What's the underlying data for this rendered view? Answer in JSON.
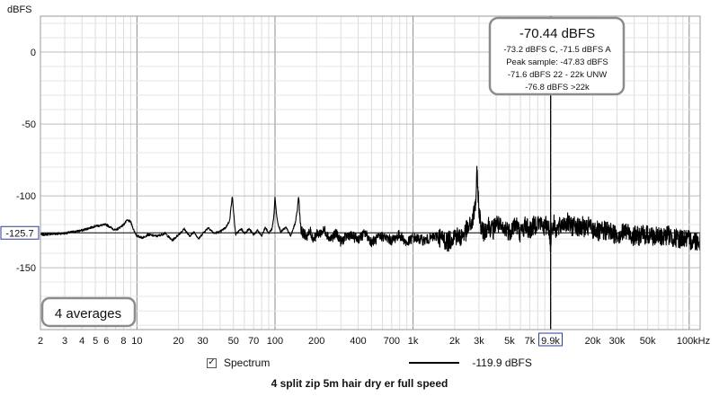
{
  "chart_data": {
    "type": "line",
    "title": "4 split zip 5m hair dry er full speed",
    "ylabel": "dBFS",
    "xlabel": "",
    "x_scale": "log",
    "xlim": [
      2,
      120000
    ],
    "ylim": [
      -193,
      25
    ],
    "x_ticks": [
      {
        "v": 2,
        "l": "2"
      },
      {
        "v": 3,
        "l": "3"
      },
      {
        "v": 4,
        "l": "4"
      },
      {
        "v": 5,
        "l": "5"
      },
      {
        "v": 6,
        "l": "6"
      },
      {
        "v": 8,
        "l": "8"
      },
      {
        "v": 10,
        "l": "10"
      },
      {
        "v": 20,
        "l": "20"
      },
      {
        "v": 30,
        "l": "30"
      },
      {
        "v": 50,
        "l": "50"
      },
      {
        "v": 70,
        "l": "70"
      },
      {
        "v": 100,
        "l": "100"
      },
      {
        "v": 200,
        "l": "200"
      },
      {
        "v": 400,
        "l": "400"
      },
      {
        "v": 700,
        "l": "700"
      },
      {
        "v": 1000,
        "l": "1k"
      },
      {
        "v": 2000,
        "l": "2k"
      },
      {
        "v": 3000,
        "l": "3k"
      },
      {
        "v": 5000,
        "l": "5k"
      },
      {
        "v": 7000,
        "l": "7k"
      },
      {
        "v": 20000,
        "l": "20k"
      },
      {
        "v": 30000,
        "l": "30k"
      },
      {
        "v": 50000,
        "l": "50k"
      },
      {
        "v": 100000,
        "l": "100kHz"
      }
    ],
    "y_ticks": [
      0,
      -50,
      -100,
      -150
    ],
    "grid": true,
    "cursor": {
      "x": 9900,
      "x_label": "9.9k",
      "y": -125.7,
      "y_label": "-125.7"
    },
    "series": [
      {
        "name": "Spectrum",
        "color": "#000000",
        "x": [
          2,
          3,
          4,
          5,
          6,
          7,
          8,
          8.5,
          9,
          9.5,
          10,
          11,
          12,
          14,
          16,
          18,
          20,
          22,
          24,
          26,
          28,
          30,
          33,
          36,
          40,
          44,
          47,
          48,
          49,
          50,
          51,
          52,
          54,
          57,
          60,
          65,
          70,
          75,
          80,
          85,
          90,
          95,
          98,
          100,
          102,
          105,
          110,
          120,
          130,
          140,
          145,
          148,
          150,
          152,
          155,
          160,
          170,
          180,
          190,
          200,
          230,
          250,
          280,
          300,
          340,
          400,
          450,
          500,
          600,
          700,
          800,
          900,
          1000,
          1200,
          1500,
          1800,
          2000,
          2200,
          2500,
          2700,
          2850,
          2900,
          2950,
          3000,
          3100,
          3200,
          3500,
          3800,
          4000,
          4500,
          4700,
          5000,
          5500,
          6000,
          6500,
          7000,
          8000,
          9000,
          9500,
          9800,
          9900,
          10000,
          10500,
          11000,
          12000,
          13000,
          14000,
          15000,
          16000,
          17000,
          18000,
          19000,
          20000,
          21000,
          22000,
          25000,
          30000,
          35000,
          40000,
          50000,
          60000,
          70000,
          80000,
          90000,
          100000
        ],
        "values": [
          -127,
          -126,
          -124,
          -121,
          -120,
          -124,
          -120,
          -117,
          -118,
          -124,
          -128,
          -129,
          -127,
          -128,
          -126,
          -131,
          -127,
          -123,
          -128,
          -125,
          -130,
          -126,
          -122,
          -126,
          -125,
          -122,
          -117,
          -108,
          -100,
          -110,
          -120,
          -127,
          -125,
          -123,
          -126,
          -123,
          -127,
          -124,
          -128,
          -122,
          -126,
          -123,
          -115,
          -100,
          -111,
          -119,
          -125,
          -122,
          -128,
          -119,
          -110,
          -100,
          -107,
          -116,
          -124,
          -126,
          -128,
          -125,
          -130,
          -127,
          -124,
          -130,
          -126,
          -132,
          -127,
          -130,
          -126,
          -132,
          -128,
          -131,
          -127,
          -133,
          -129,
          -131,
          -128,
          -132,
          -127,
          -129,
          -123,
          -118,
          -103,
          -85,
          -95,
          -110,
          -120,
          -126,
          -120,
          -124,
          -118,
          -125,
          -122,
          -125,
          -119,
          -126,
          -120,
          -124,
          -118,
          -122,
          -119,
          -128,
          -138,
          -123,
          -120,
          -124,
          -120,
          -118,
          -122,
          -119,
          -123,
          -121,
          -124,
          -120,
          -125,
          -122,
          -126,
          -124,
          -127,
          -125,
          -128,
          -127,
          -129,
          -127,
          -130,
          -129,
          -131
        ]
      }
    ]
  },
  "y_unit_label": "dBFS",
  "readout": {
    "main": "-70.44 dBFS",
    "lines": [
      "-73.2 dBFS C, -71.5 dBFS A",
      "Peak sample: -47.83 dBFS",
      "-71.6 dBFS 22 - 22k UNW",
      "-76.8 dBFS >22k"
    ]
  },
  "averages_label": "4 averages",
  "legend": {
    "checkbox_glyph": "✓",
    "series_label": "Spectrum",
    "cursor_value": "-119.9 dBFS"
  }
}
